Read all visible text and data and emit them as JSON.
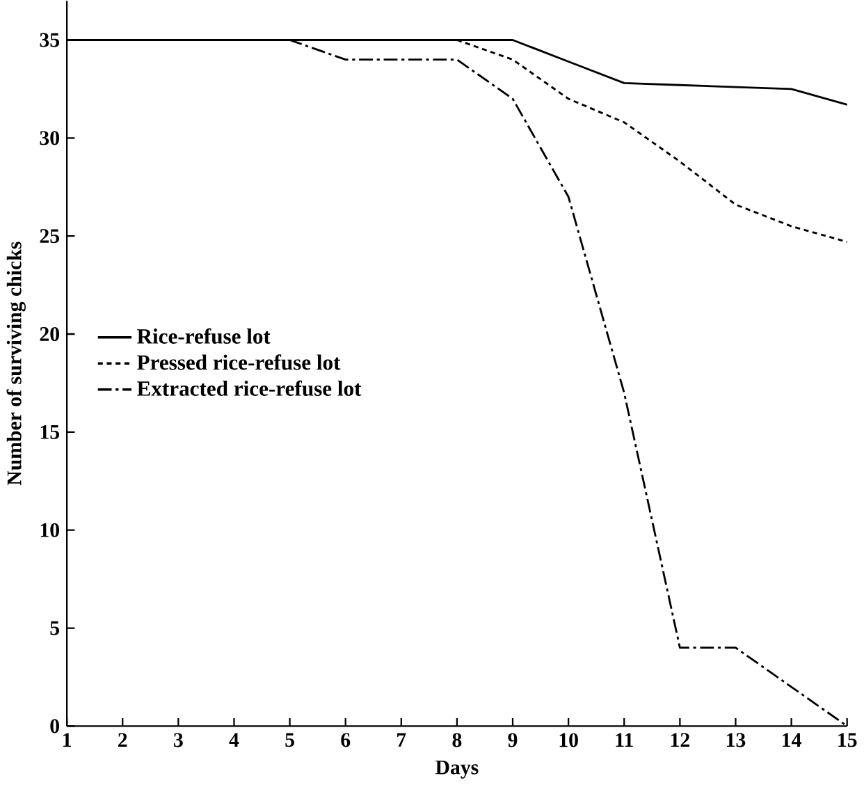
{
  "chart_data": {
    "type": "line",
    "xlabel": "Days",
    "ylabel": "Number of surviving chicks",
    "x": [
      1,
      2,
      3,
      4,
      5,
      6,
      7,
      8,
      9,
      10,
      11,
      12,
      13,
      14,
      15
    ],
    "series": [
      {
        "name": "Rice-refuse lot",
        "color": "#000000",
        "line_style": "solid",
        "values": [
          35,
          35,
          35,
          35,
          35,
          35,
          35,
          35,
          35,
          33.9,
          32.8,
          32.7,
          32.6,
          32.5,
          31.7
        ]
      },
      {
        "name": "Pressed rice-refuse lot",
        "color": "#000000",
        "line_style": "dotted",
        "values": [
          35,
          35,
          35,
          35,
          35,
          35,
          35,
          35,
          34,
          32,
          30.8,
          28.8,
          26.6,
          25.5,
          24.7
        ]
      },
      {
        "name": "Extracted rice-refuse lot",
        "color": "#000000",
        "line_style": "dashdot",
        "values": [
          35,
          35,
          35,
          35,
          35,
          34,
          34,
          34,
          32,
          27,
          17,
          4,
          4,
          2,
          0
        ]
      }
    ],
    "xlim": [
      1,
      15
    ],
    "ylim": [
      0,
      37
    ],
    "xticks": [
      1,
      2,
      3,
      4,
      5,
      6,
      7,
      8,
      9,
      10,
      11,
      12,
      13,
      14,
      15
    ],
    "yticks": [
      0,
      5,
      10,
      15,
      20,
      25,
      30,
      35
    ],
    "legend": "left",
    "marker": "none"
  }
}
